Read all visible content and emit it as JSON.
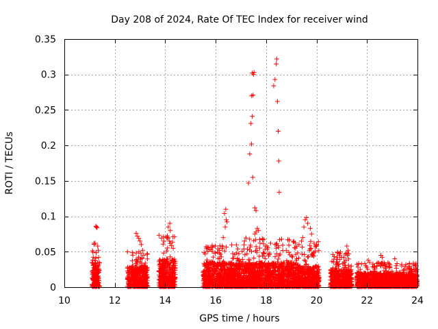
{
  "chart_data": {
    "type": "scatter",
    "title": "Day 208 of 2024, Rate Of TEC Index for receiver wind",
    "xlabel": "GPS time / hours",
    "ylabel": "ROTI / TECUs",
    "xlim": [
      10,
      24
    ],
    "ylim": [
      0,
      0.35
    ],
    "xticks": [
      10,
      12,
      14,
      16,
      18,
      20,
      22,
      24
    ],
    "yticks": [
      0,
      0.05,
      0.1,
      0.15,
      0.2,
      0.25,
      0.3,
      0.35
    ],
    "ytick_labels": [
      "0",
      "0.05",
      "0.1",
      "0.15",
      "0.2",
      "0.25",
      "0.3",
      "0.35"
    ],
    "grid": true,
    "marker": "+",
    "color": "#ff0000",
    "series": [
      {
        "name": "ROTI",
        "segments": [
          {
            "start": 11.1,
            "end": 11.4,
            "base": 0.035,
            "spike": 0.062
          },
          {
            "start": 12.5,
            "end": 13.3,
            "base": 0.03,
            "spike": 0.05
          },
          {
            "start": 13.75,
            "end": 14.4,
            "base": 0.04,
            "spike": 0.075
          },
          {
            "start": 15.5,
            "end": 17.0,
            "base": 0.035,
            "spike": 0.06
          },
          {
            "start": 17.0,
            "end": 19.3,
            "base": 0.035,
            "spike": 0.07
          },
          {
            "start": 19.3,
            "end": 20.1,
            "base": 0.03,
            "spike": 0.065
          },
          {
            "start": 20.55,
            "end": 20.8,
            "base": 0.025,
            "spike": 0.04
          },
          {
            "start": 20.8,
            "end": 21.4,
            "base": 0.025,
            "spike": 0.05
          },
          {
            "start": 21.6,
            "end": 24.0,
            "base": 0.02,
            "spike": 0.035
          }
        ],
        "points": [
          [
            11.25,
            0.086
          ],
          [
            11.27,
            0.085
          ],
          [
            11.3,
            0.084
          ],
          [
            11.22,
            0.062
          ],
          [
            11.32,
            0.058
          ],
          [
            12.85,
            0.076
          ],
          [
            12.9,
            0.072
          ],
          [
            12.95,
            0.069
          ],
          [
            13.0,
            0.065
          ],
          [
            13.05,
            0.06
          ],
          [
            13.1,
            0.052
          ],
          [
            13.85,
            0.069
          ],
          [
            13.95,
            0.065
          ],
          [
            14.05,
            0.07
          ],
          [
            14.12,
            0.085
          ],
          [
            14.18,
            0.09
          ],
          [
            14.2,
            0.08
          ],
          [
            16.35,
            0.104
          ],
          [
            16.4,
            0.11
          ],
          [
            16.42,
            0.095
          ],
          [
            16.45,
            0.092
          ],
          [
            16.38,
            0.085
          ],
          [
            16.3,
            0.07
          ],
          [
            17.3,
            0.147
          ],
          [
            17.35,
            0.188
          ],
          [
            17.4,
            0.231
          ],
          [
            17.45,
            0.241
          ],
          [
            17.42,
            0.202
          ],
          [
            17.47,
            0.155
          ],
          [
            17.43,
            0.27
          ],
          [
            17.48,
            0.271
          ],
          [
            17.5,
            0.3
          ],
          [
            17.45,
            0.302
          ],
          [
            17.52,
            0.303
          ],
          [
            17.55,
            0.112
          ],
          [
            17.6,
            0.108
          ],
          [
            17.65,
            0.083
          ],
          [
            17.7,
            0.08
          ],
          [
            17.55,
            0.075
          ],
          [
            17.6,
            0.078
          ],
          [
            18.3,
            0.284
          ],
          [
            18.35,
            0.293
          ],
          [
            18.4,
            0.315
          ],
          [
            18.42,
            0.322
          ],
          [
            18.45,
            0.262
          ],
          [
            18.48,
            0.22
          ],
          [
            18.5,
            0.178
          ],
          [
            18.52,
            0.134
          ],
          [
            18.35,
            0.06
          ],
          [
            18.4,
            0.055
          ],
          [
            19.6,
            0.098
          ],
          [
            19.55,
            0.095
          ],
          [
            19.65,
            0.09
          ],
          [
            19.5,
            0.085
          ],
          [
            19.45,
            0.07
          ],
          [
            19.4,
            0.065
          ],
          [
            19.75,
            0.083
          ],
          [
            19.8,
            0.075
          ],
          [
            19.9,
            0.062
          ],
          [
            19.95,
            0.057
          ],
          [
            20.0,
            0.06
          ],
          [
            19.85,
            0.045
          ],
          [
            20.65,
            0.046
          ],
          [
            20.7,
            0.043
          ],
          [
            21.2,
            0.058
          ],
          [
            21.25,
            0.052
          ],
          [
            21.22,
            0.045
          ],
          [
            22.05,
            0.038
          ],
          [
            22.1,
            0.035
          ],
          [
            22.55,
            0.045
          ],
          [
            22.6,
            0.042
          ],
          [
            23.1,
            0.04
          ],
          [
            23.9,
            0.032
          ],
          [
            23.95,
            0.03
          ]
        ]
      }
    ]
  }
}
